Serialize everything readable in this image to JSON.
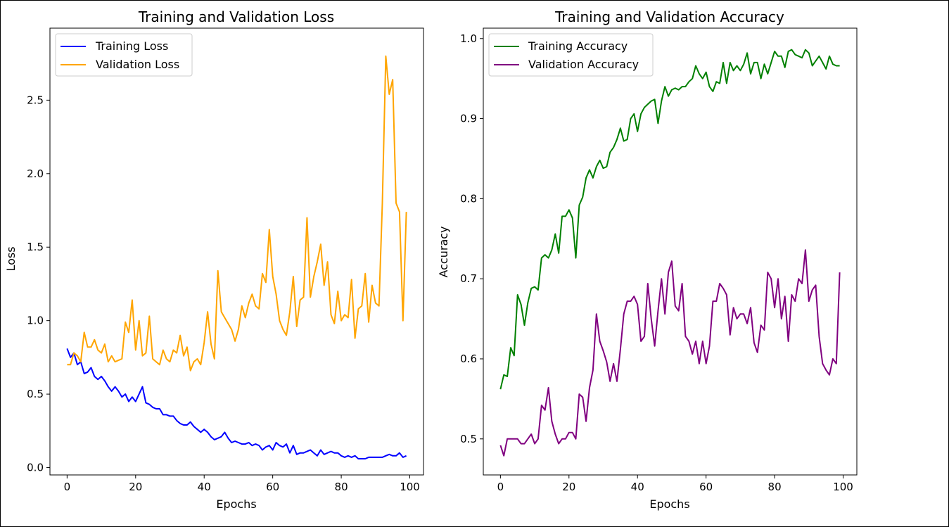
{
  "chart_data": [
    {
      "type": "line",
      "title": "Training and Validation Loss",
      "xlabel": "Epochs",
      "ylabel": "Loss",
      "xlim": [
        -5,
        104
      ],
      "ylim": [
        -0.05,
        2.99
      ],
      "xticks": [
        0,
        20,
        40,
        60,
        80,
        100
      ],
      "xtick_labels": [
        "0",
        "20",
        "40",
        "60",
        "80",
        "100"
      ],
      "yticks": [
        0,
        0.5,
        1.0,
        1.5,
        2.0,
        2.5
      ],
      "ytick_labels": [
        "0.0",
        "0.5",
        "1.0",
        "1.5",
        "2.0",
        "2.5"
      ],
      "grid": false,
      "legend": "top-left",
      "x": [
        0,
        1,
        2,
        3,
        4,
        5,
        6,
        7,
        8,
        9,
        10,
        11,
        12,
        13,
        14,
        15,
        16,
        17,
        18,
        19,
        20,
        21,
        22,
        23,
        24,
        25,
        26,
        27,
        28,
        29,
        30,
        31,
        32,
        33,
        34,
        35,
        36,
        37,
        38,
        39,
        40,
        41,
        42,
        43,
        44,
        45,
        46,
        47,
        48,
        49,
        50,
        51,
        52,
        53,
        54,
        55,
        56,
        57,
        58,
        59,
        60,
        61,
        62,
        63,
        64,
        65,
        66,
        67,
        68,
        69,
        70,
        71,
        72,
        73,
        74,
        75,
        76,
        77,
        78,
        79,
        80,
        81,
        82,
        83,
        84,
        85,
        86,
        87,
        88,
        89,
        90,
        91,
        92,
        93,
        94,
        95,
        96,
        97,
        98,
        99
      ],
      "series": [
        {
          "name": "Training Loss",
          "color": "#0000ff",
          "values": [
            0.81,
            0.75,
            0.78,
            0.7,
            0.72,
            0.64,
            0.65,
            0.68,
            0.62,
            0.6,
            0.62,
            0.59,
            0.55,
            0.52,
            0.55,
            0.52,
            0.48,
            0.5,
            0.45,
            0.48,
            0.45,
            0.5,
            0.55,
            0.44,
            0.43,
            0.41,
            0.4,
            0.4,
            0.36,
            0.36,
            0.35,
            0.35,
            0.32,
            0.3,
            0.29,
            0.29,
            0.31,
            0.28,
            0.26,
            0.24,
            0.26,
            0.24,
            0.21,
            0.19,
            0.2,
            0.21,
            0.24,
            0.2,
            0.17,
            0.18,
            0.17,
            0.16,
            0.16,
            0.17,
            0.15,
            0.16,
            0.15,
            0.12,
            0.14,
            0.15,
            0.12,
            0.17,
            0.15,
            0.14,
            0.16,
            0.1,
            0.15,
            0.09,
            0.1,
            0.1,
            0.11,
            0.12,
            0.1,
            0.08,
            0.12,
            0.09,
            0.1,
            0.11,
            0.1,
            0.1,
            0.08,
            0.07,
            0.08,
            0.07,
            0.08,
            0.06,
            0.06,
            0.06,
            0.07,
            0.07,
            0.07,
            0.07,
            0.07,
            0.08,
            0.09,
            0.08,
            0.08,
            0.1,
            0.07,
            0.08
          ]
        },
        {
          "name": "Validation Loss",
          "color": "#ffa500",
          "values": [
            0.7,
            0.7,
            0.78,
            0.76,
            0.72,
            0.92,
            0.82,
            0.82,
            0.87,
            0.8,
            0.78,
            0.84,
            0.72,
            0.76,
            0.72,
            0.73,
            0.74,
            0.99,
            0.92,
            1.14,
            0.8,
            1.0,
            0.76,
            0.78,
            1.03,
            0.74,
            0.72,
            0.7,
            0.8,
            0.74,
            0.72,
            0.8,
            0.78,
            0.9,
            0.76,
            0.82,
            0.66,
            0.72,
            0.74,
            0.7,
            0.85,
            1.06,
            0.84,
            0.74,
            1.34,
            1.06,
            1.02,
            0.98,
            0.94,
            0.86,
            0.94,
            1.1,
            1.02,
            1.12,
            1.18,
            1.1,
            1.08,
            1.32,
            1.26,
            1.62,
            1.3,
            1.18,
            1.0,
            0.94,
            0.9,
            1.06,
            1.3,
            0.96,
            1.14,
            1.16,
            1.7,
            1.16,
            1.3,
            1.4,
            1.52,
            1.24,
            1.4,
            1.04,
            0.98,
            1.2,
            1.0,
            1.04,
            1.02,
            1.28,
            0.88,
            1.08,
            1.1,
            1.32,
            0.99,
            1.24,
            1.12,
            1.1,
            1.8,
            2.8,
            2.54,
            2.64,
            1.8,
            1.74,
            1.0,
            1.74
          ]
        }
      ]
    },
    {
      "type": "line",
      "title": "Training and Validation Accuracy",
      "xlabel": "Epochs",
      "ylabel": "Accuracy",
      "xlim": [
        -5,
        104
      ],
      "ylim": [
        0.455,
        1.013
      ],
      "xticks": [
        0,
        20,
        40,
        60,
        80,
        100
      ],
      "xtick_labels": [
        "0",
        "20",
        "40",
        "60",
        "80",
        "100"
      ],
      "yticks": [
        0.5,
        0.6,
        0.7,
        0.8,
        0.9,
        1.0
      ],
      "ytick_labels": [
        "0.5",
        "0.6",
        "0.7",
        "0.8",
        "0.9",
        "1.0"
      ],
      "grid": false,
      "legend": "top-left",
      "x": [
        0,
        1,
        2,
        3,
        4,
        5,
        6,
        7,
        8,
        9,
        10,
        11,
        12,
        13,
        14,
        15,
        16,
        17,
        18,
        19,
        20,
        21,
        22,
        23,
        24,
        25,
        26,
        27,
        28,
        29,
        30,
        31,
        32,
        33,
        34,
        35,
        36,
        37,
        38,
        39,
        40,
        41,
        42,
        43,
        44,
        45,
        46,
        47,
        48,
        49,
        50,
        51,
        52,
        53,
        54,
        55,
        56,
        57,
        58,
        59,
        60,
        61,
        62,
        63,
        64,
        65,
        66,
        67,
        68,
        69,
        70,
        71,
        72,
        73,
        74,
        75,
        76,
        77,
        78,
        79,
        80,
        81,
        82,
        83,
        84,
        85,
        86,
        87,
        88,
        89,
        90,
        91,
        92,
        93,
        94,
        95,
        96,
        97,
        98,
        99
      ],
      "series": [
        {
          "name": "Training Accuracy",
          "color": "#008000",
          "values": [
            0.562,
            0.58,
            0.578,
            0.614,
            0.604,
            0.68,
            0.668,
            0.642,
            0.67,
            0.688,
            0.69,
            0.686,
            0.726,
            0.73,
            0.726,
            0.736,
            0.756,
            0.732,
            0.778,
            0.778,
            0.786,
            0.776,
            0.726,
            0.792,
            0.802,
            0.826,
            0.836,
            0.826,
            0.84,
            0.848,
            0.838,
            0.84,
            0.858,
            0.864,
            0.874,
            0.888,
            0.872,
            0.874,
            0.9,
            0.906,
            0.884,
            0.906,
            0.914,
            0.918,
            0.922,
            0.924,
            0.894,
            0.922,
            0.94,
            0.928,
            0.936,
            0.938,
            0.936,
            0.94,
            0.94,
            0.946,
            0.95,
            0.966,
            0.956,
            0.95,
            0.958,
            0.94,
            0.934,
            0.946,
            0.944,
            0.97,
            0.944,
            0.97,
            0.96,
            0.966,
            0.96,
            0.968,
            0.982,
            0.956,
            0.97,
            0.97,
            0.95,
            0.968,
            0.956,
            0.97,
            0.984,
            0.978,
            0.978,
            0.964,
            0.984,
            0.986,
            0.98,
            0.978,
            0.976,
            0.986,
            0.982,
            0.966,
            0.972,
            0.978,
            0.97,
            0.962,
            0.978,
            0.968,
            0.966,
            0.966
          ]
        },
        {
          "name": "Validation Accuracy",
          "color": "#800080",
          "values": [
            0.492,
            0.479,
            0.5,
            0.5,
            0.5,
            0.5,
            0.494,
            0.494,
            0.5,
            0.506,
            0.494,
            0.5,
            0.542,
            0.536,
            0.564,
            0.522,
            0.506,
            0.494,
            0.5,
            0.5,
            0.508,
            0.508,
            0.5,
            0.556,
            0.552,
            0.522,
            0.564,
            0.586,
            0.656,
            0.622,
            0.61,
            0.596,
            0.572,
            0.594,
            0.572,
            0.612,
            0.656,
            0.672,
            0.672,
            0.678,
            0.668,
            0.622,
            0.628,
            0.694,
            0.65,
            0.616,
            0.66,
            0.7,
            0.656,
            0.708,
            0.722,
            0.666,
            0.66,
            0.694,
            0.628,
            0.622,
            0.606,
            0.622,
            0.594,
            0.622,
            0.594,
            0.616,
            0.672,
            0.672,
            0.694,
            0.688,
            0.68,
            0.63,
            0.664,
            0.65,
            0.656,
            0.656,
            0.644,
            0.664,
            0.62,
            0.608,
            0.642,
            0.636,
            0.708,
            0.7,
            0.664,
            0.7,
            0.65,
            0.678,
            0.622,
            0.68,
            0.672,
            0.7,
            0.694,
            0.736,
            0.672,
            0.686,
            0.692,
            0.628,
            0.594,
            0.586,
            0.58,
            0.6,
            0.594,
            0.708
          ]
        }
      ]
    }
  ]
}
